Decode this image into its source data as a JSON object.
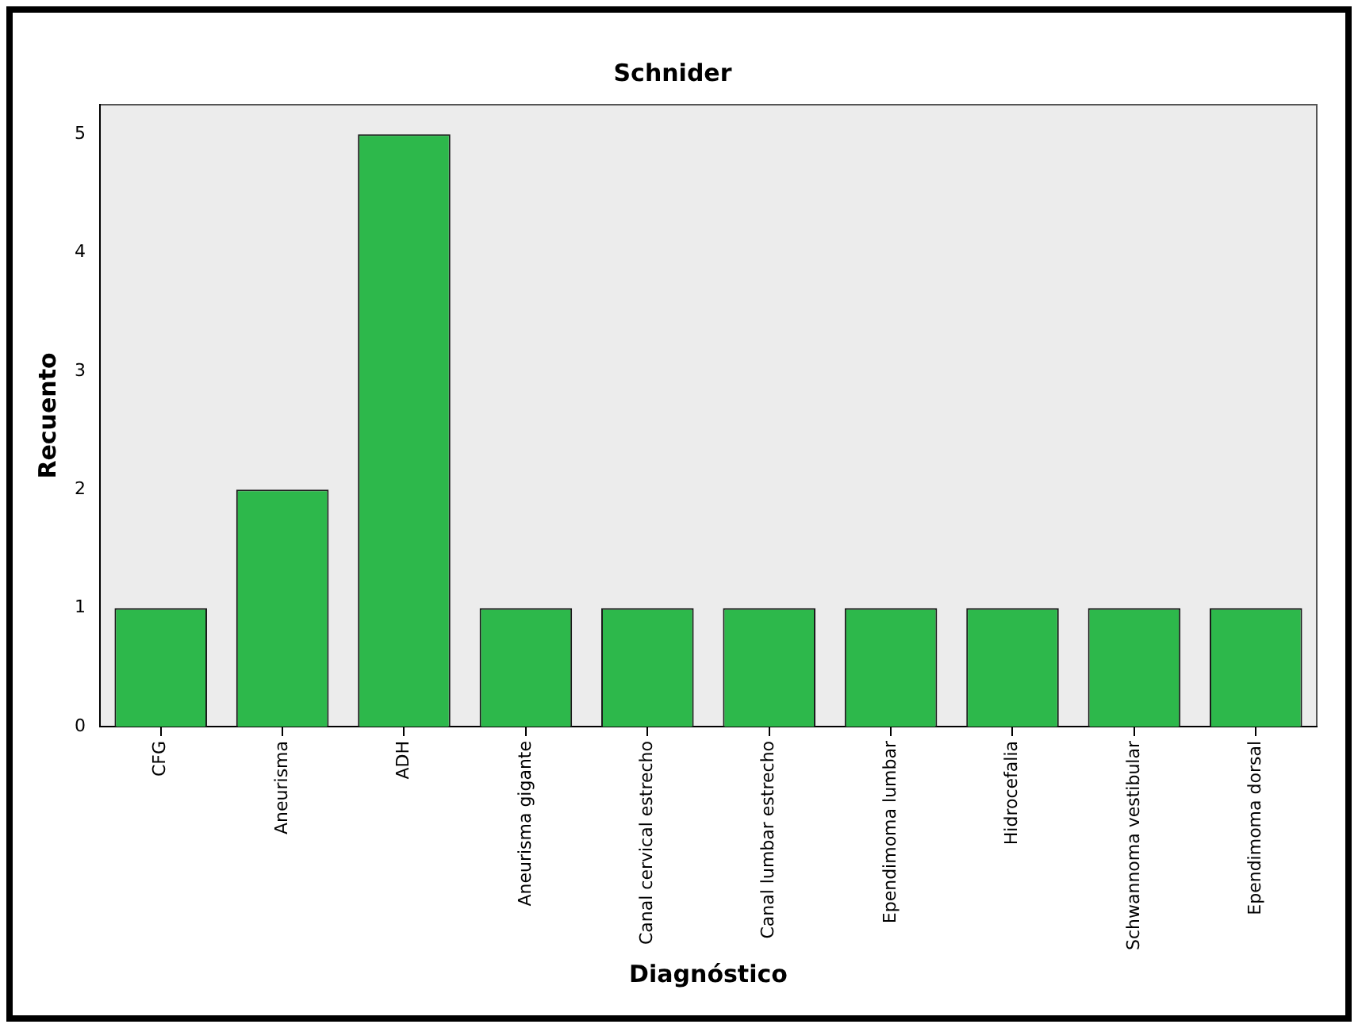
{
  "chart_data": {
    "type": "bar",
    "title": "Schnider",
    "xlabel": "Diagnóstico",
    "ylabel": "Recuento",
    "categories": [
      "CFG",
      "Aneurisma",
      "ADH",
      "Aneurisma gigante",
      "Canal cervical estrecho",
      "Canal lumbar estrecho",
      "Ependimoma lumbar",
      "Hidrocefalia",
      "Schwannoma vestibular",
      "Ependimoma dorsal"
    ],
    "values": [
      1,
      2,
      5,
      1,
      1,
      1,
      1,
      1,
      1,
      1
    ],
    "color": "#2db84b",
    "ylim": [
      0,
      5.25
    ],
    "yticks": [
      0,
      1,
      2,
      3,
      4,
      5
    ],
    "grid": false,
    "legend": false
  }
}
